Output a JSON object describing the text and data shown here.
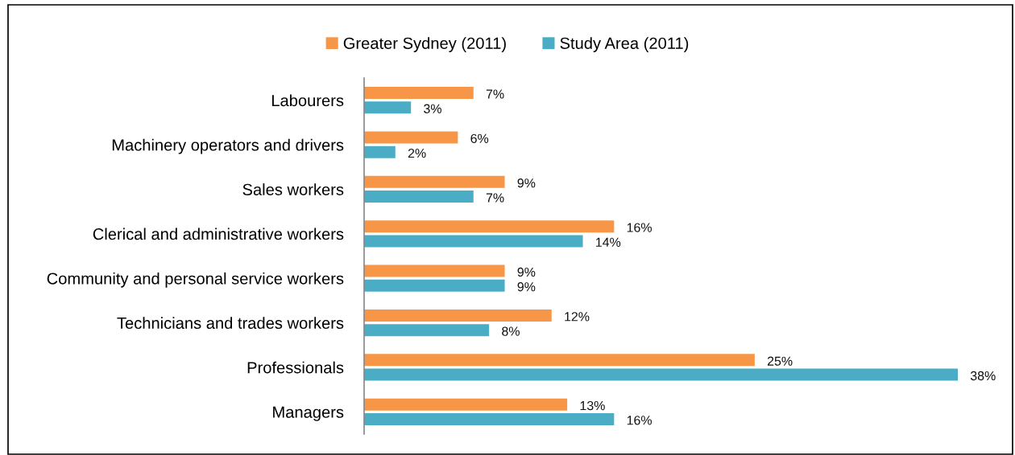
{
  "chart_data": {
    "type": "bar",
    "orientation": "horizontal",
    "categories": [
      "Labourers",
      "Machinery operators and drivers",
      "Sales workers",
      "Clerical and administrative workers",
      "Community and personal service workers",
      "Technicians and trades workers",
      "Professionals",
      "Managers"
    ],
    "series": [
      {
        "name": "Greater Sydney (2011)",
        "color": "#f79646",
        "values": [
          7,
          6,
          9,
          16,
          9,
          12,
          25,
          13
        ],
        "value_labels": [
          "7%",
          "6%",
          "9%",
          "16%",
          "9%",
          "12%",
          "25%",
          "13%"
        ]
      },
      {
        "name": "Study Area (2011)",
        "color": "#4bacc6",
        "values": [
          3,
          2,
          7,
          14,
          9,
          8,
          38,
          16
        ],
        "value_labels": [
          "3%",
          "2%",
          "7%",
          "14%",
          "9%",
          "8%",
          "38%",
          "16%"
        ]
      }
    ],
    "legend": "top",
    "tick_labels": "y",
    "grid": false
  }
}
